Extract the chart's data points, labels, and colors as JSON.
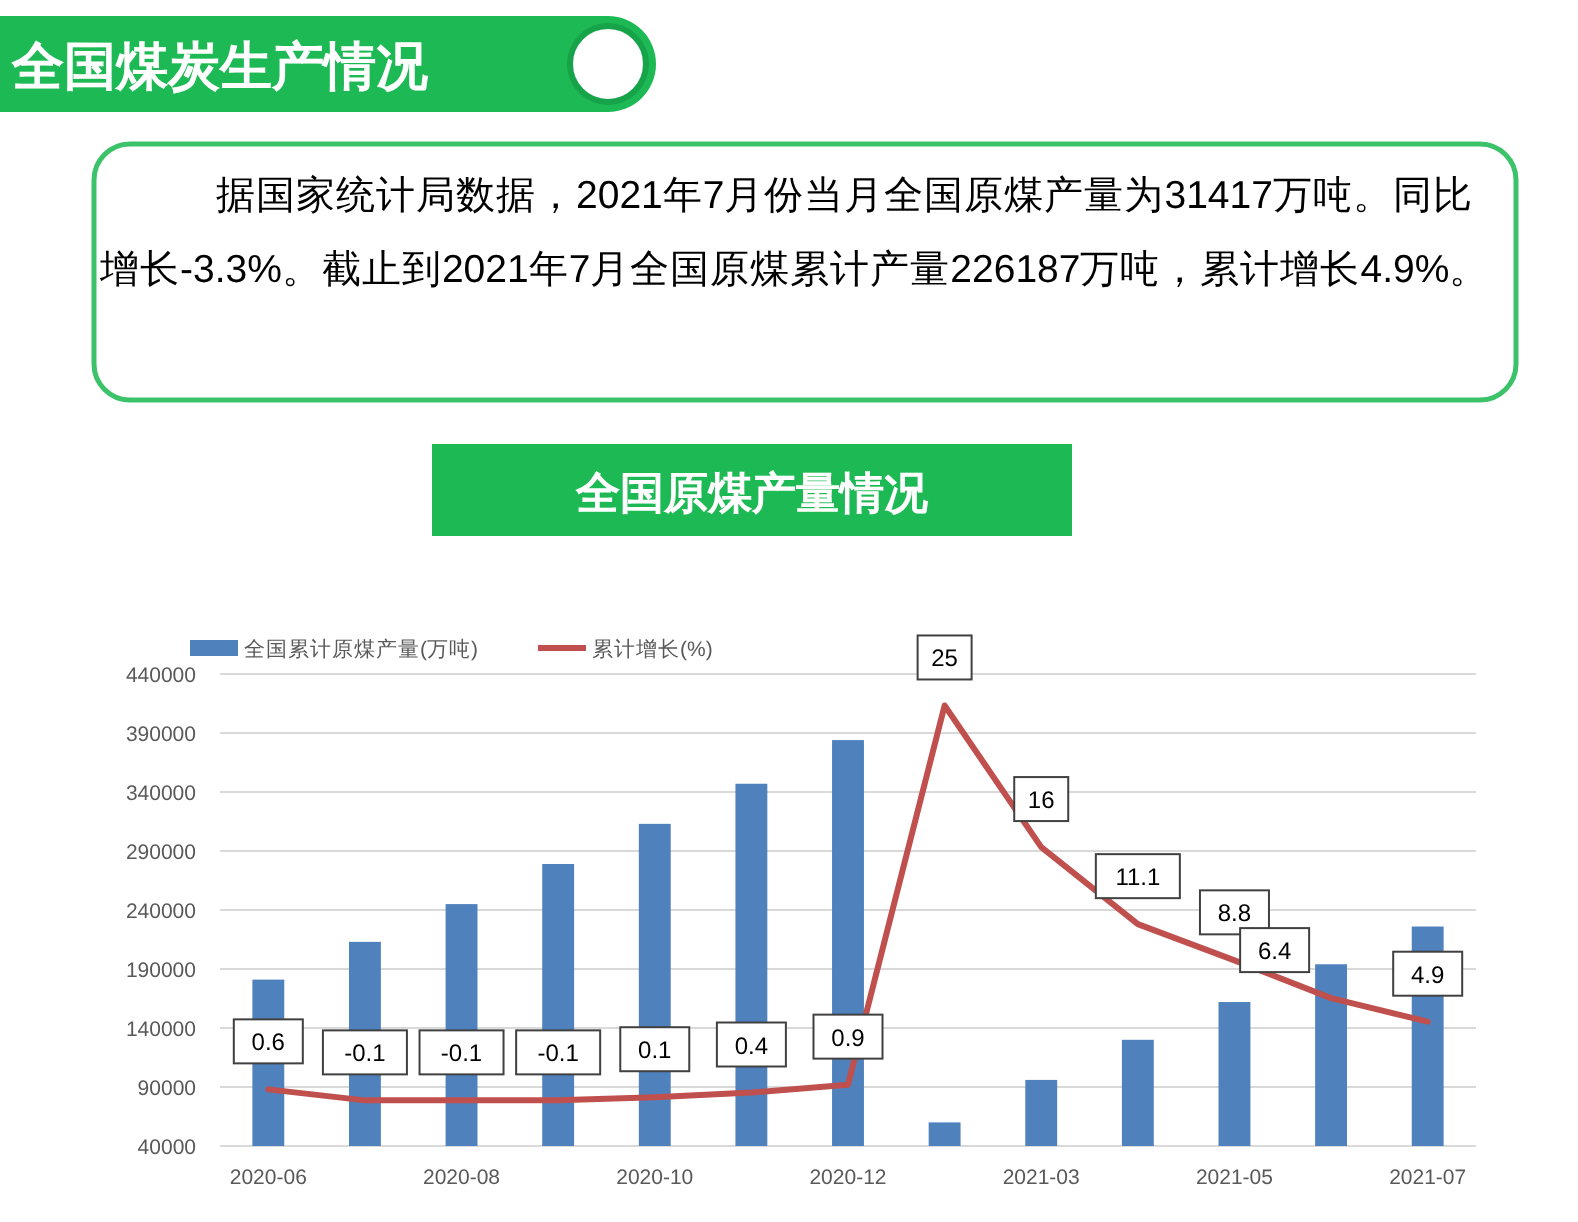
{
  "chart_data": {
    "type": "bar",
    "title": "全国煤炭生产情况",
    "subtitle": "全国原煤产量情况",
    "annotations": [
      "据国家统计局数据，2021年7月份当月全国原煤产量为31417万吨。同比增长-3.3%。截止到2021年7月全国原煤累计产量226187万吨，累计增长4.9%。"
    ],
    "categories": [
      "2020-06",
      null,
      "2020-08",
      null,
      "2020-10",
      null,
      "2020-12",
      null,
      "2021-03",
      null,
      "2021-05",
      null,
      "2021-07"
    ],
    "series": [
      {
        "name": "全国累计原煤产量(万吨)",
        "color": "#4f81bd",
        "values": [
          181000,
          213000,
          245000,
          279000,
          313000,
          347000,
          384000,
          60000,
          96000,
          130000,
          162000,
          194000,
          226000
        ]
      },
      {
        "name": "累计增长(%)",
        "type": "line",
        "axis": "y2",
        "color": "#c0504d",
        "values": [
          0.6,
          -0.1,
          -0.1,
          -0.1,
          0.1,
          0.4,
          0.9,
          25,
          16,
          11.1,
          8.8,
          6.4,
          4.9
        ],
        "value_labels": [
          "0.6",
          "-0.1",
          "-0.1",
          "-0.1",
          "0.1",
          "0.4",
          "0.9",
          "25",
          "16",
          "11.1",
          "8.8",
          "6.4",
          "4.9"
        ]
      }
    ],
    "ylim": [
      40000,
      440000
    ],
    "yticks": [
      40000,
      90000,
      140000,
      190000,
      240000,
      290000,
      340000,
      390000,
      440000
    ],
    "y2lim": [
      -3,
      27
    ],
    "grid": "y",
    "legend": "top left"
  }
}
